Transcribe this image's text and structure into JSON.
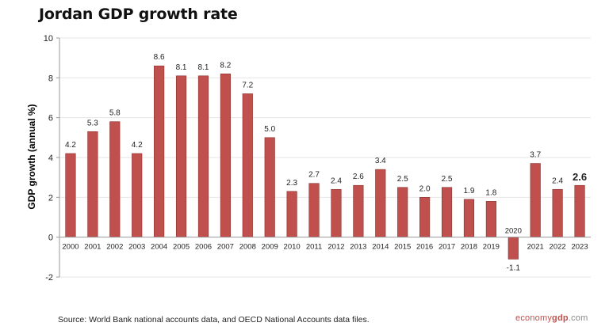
{
  "header": {
    "title": "Jordan GDP growth rate"
  },
  "footer": {
    "source": "Source: World Bank national accounts data, and OECD National Accounts data files.",
    "brand_part1": "economy",
    "brand_part2": "gdp",
    "brand_part3": ".com"
  },
  "colors": {
    "bar": "#c0504d",
    "bar_edge": "#8c2f2c",
    "grid": "#e6e6e6",
    "axis": "#999999"
  },
  "chart_data": {
    "type": "bar",
    "title": "Jordan GDP growth rate",
    "ylabel": "GDP growth (annual %)",
    "xlabel": "",
    "ylim": [
      -2,
      10
    ],
    "yticks": [
      -2,
      0,
      2,
      4,
      6,
      8,
      10
    ],
    "grid": true,
    "categories": [
      "2000",
      "2001",
      "2002",
      "2003",
      "2004",
      "2005",
      "2006",
      "2007",
      "2008",
      "2009",
      "2010",
      "2011",
      "2012",
      "2013",
      "2014",
      "2015",
      "2016",
      "2017",
      "2018",
      "2019",
      "2020",
      "2021",
      "2022",
      "2023"
    ],
    "values": [
      4.2,
      5.3,
      5.8,
      4.2,
      8.6,
      8.1,
      8.1,
      8.2,
      7.2,
      5.0,
      2.3,
      2.7,
      2.4,
      2.6,
      3.4,
      2.5,
      2.0,
      2.5,
      1.9,
      1.8,
      -1.1,
      3.7,
      2.4,
      2.6
    ],
    "labels": [
      "4.2",
      "5.3",
      "5.8",
      "4.2",
      "8.6",
      "8.1",
      "8.1",
      "8.2",
      "7.2",
      "5.0",
      "2.3",
      "2.7",
      "2.4",
      "2.6",
      "3.4",
      "2.5",
      "2.0",
      "2.5",
      "1.9",
      "1.8",
      "-1.1",
      "3.7",
      "2.4",
      "2.6"
    ]
  }
}
